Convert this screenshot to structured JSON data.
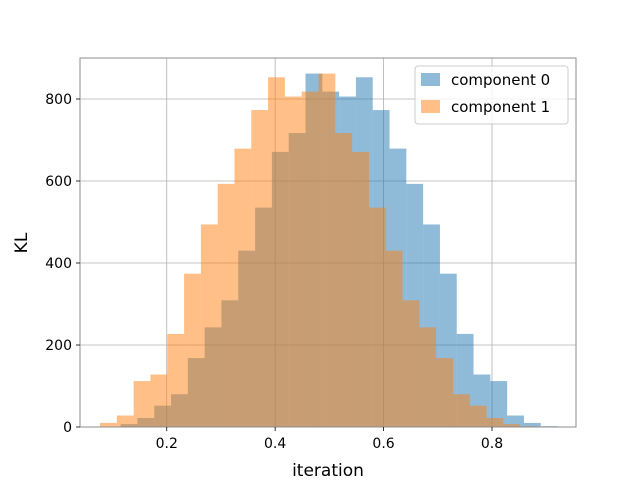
{
  "chart_data": {
    "type": "histogram",
    "title": "",
    "xlabel": "iteration",
    "ylabel": "KL",
    "xlim": [
      0.04,
      0.955
    ],
    "ylim": [
      0,
      900
    ],
    "xticks": [
      0.2,
      0.4,
      0.6,
      0.8
    ],
    "xtick_labels": [
      "0.2",
      "0.4",
      "0.6",
      "0.8"
    ],
    "yticks": [
      0,
      200,
      400,
      600,
      800
    ],
    "ytick_labels": [
      "0",
      "200",
      "400",
      "600",
      "800"
    ],
    "grid": true,
    "legend_position": "top-right",
    "series": [
      {
        "name": "component 0",
        "color": "#1f77b4",
        "alpha": 0.5,
        "bin_edges": [
          0.115,
          0.146,
          0.177,
          0.208,
          0.239,
          0.27,
          0.301,
          0.332,
          0.363,
          0.394,
          0.425,
          0.456,
          0.487,
          0.518,
          0.549,
          0.58,
          0.611,
          0.642,
          0.673,
          0.704,
          0.735,
          0.766,
          0.797,
          0.828,
          0.859,
          0.89,
          0.921
        ],
        "counts": [
          7,
          22,
          52,
          80,
          168,
          243,
          309,
          430,
          535,
          671,
          717,
          862,
          818,
          806,
          853,
          773,
          679,
          593,
          494,
          374,
          227,
          128,
          112,
          28,
          10,
          2
        ]
      },
      {
        "name": "component 1",
        "color": "#ff7f0e",
        "alpha": 0.5,
        "bin_edges": [
          0.077,
          0.108,
          0.139,
          0.17,
          0.201,
          0.232,
          0.263,
          0.294,
          0.325,
          0.356,
          0.387,
          0.418,
          0.449,
          0.48,
          0.511,
          0.542,
          0.573,
          0.604,
          0.635,
          0.666,
          0.697,
          0.728,
          0.759,
          0.79,
          0.821,
          0.852,
          0.883
        ],
        "counts": [
          10,
          28,
          112,
          128,
          227,
          374,
          494,
          593,
          679,
          773,
          853,
          806,
          818,
          862,
          717,
          671,
          535,
          430,
          309,
          243,
          168,
          80,
          52,
          22,
          7,
          2
        ]
      }
    ]
  }
}
